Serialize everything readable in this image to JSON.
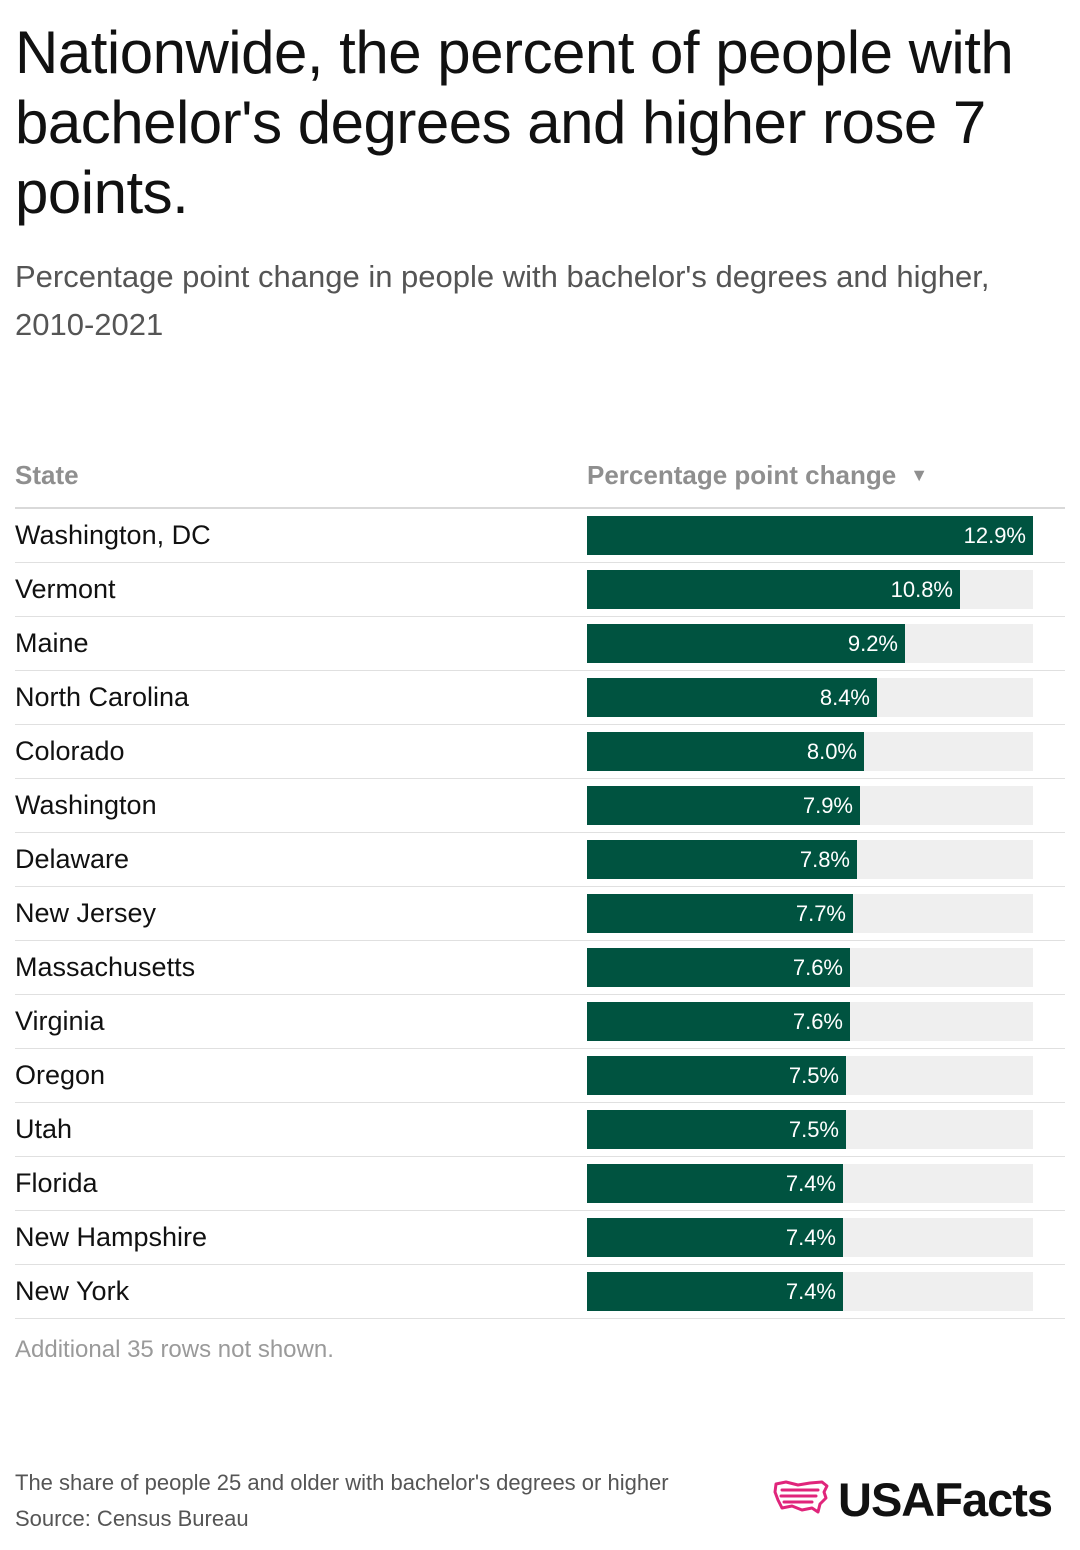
{
  "title": "Nationwide, the percent of people with bachelor's degrees and higher rose 7 points.",
  "subtitle": "Percentage point change in people with bachelor's degrees and higher, 2010-2021",
  "table": {
    "col_state": "State",
    "col_change": "Percentage point change",
    "sort_icon": "sort-descending-icon",
    "note": "Additional 35 rows not shown."
  },
  "footer": {
    "footnote": "The share of people 25 and older with bachelor's degrees or higher",
    "source": "Source: Census Bureau",
    "logo_text": "USAFacts"
  },
  "colors": {
    "bar": "#005340",
    "track": "#efefef",
    "logo_mark": "#e0257b"
  },
  "chart_data": {
    "type": "bar",
    "orientation": "horizontal",
    "xlim": [
      0,
      12.9
    ],
    "categories": [
      "Washington, DC",
      "Vermont",
      "Maine",
      "North Carolina",
      "Colorado",
      "Washington",
      "Delaware",
      "New Jersey",
      "Massachusetts",
      "Virginia",
      "Oregon",
      "Utah",
      "Florida",
      "New Hampshire",
      "New York"
    ],
    "values": [
      12.9,
      10.8,
      9.2,
      8.4,
      8.0,
      7.9,
      7.8,
      7.7,
      7.6,
      7.6,
      7.5,
      7.5,
      7.4,
      7.4,
      7.4
    ],
    "labels": [
      "12.9%",
      "10.8%",
      "9.2%",
      "8.4%",
      "8.0%",
      "7.9%",
      "7.8%",
      "7.7%",
      "7.6%",
      "7.6%",
      "7.5%",
      "7.5%",
      "7.4%",
      "7.4%",
      "7.4%"
    ]
  }
}
